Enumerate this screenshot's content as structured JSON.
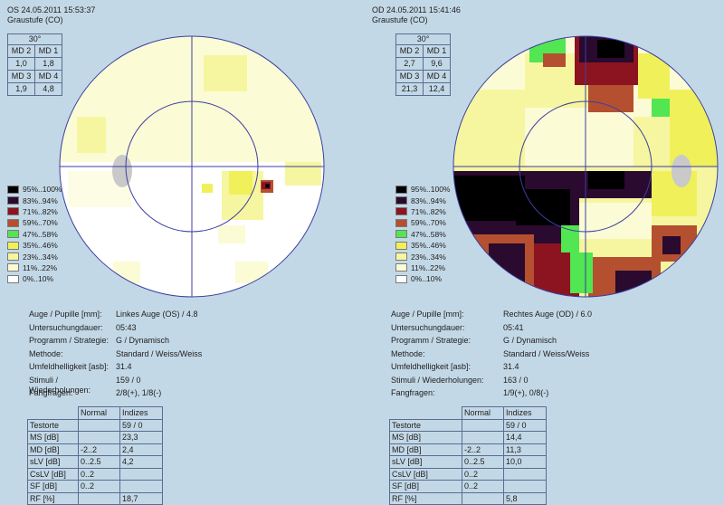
{
  "panels": [
    {
      "header": {
        "line1": "OS 24.05.2011 15:53:37",
        "line2": "Graustufe (CO)"
      },
      "md": {
        "title": "30°",
        "cells": [
          [
            "MD 2",
            "MD 1"
          ],
          [
            "1,0",
            "1,8"
          ],
          [
            "MD 3",
            "MD 4"
          ],
          [
            "1,9",
            "4,8"
          ]
        ]
      },
      "info": [
        {
          "k": "Auge / Pupille [mm]:",
          "v": "Linkes Auge (OS) / 4.8"
        },
        {
          "k": "Untersuchungdauer:",
          "v": "05:43"
        },
        {
          "k": "Programm / Strategie:",
          "v": "G / Dynamisch"
        },
        {
          "k": "Methode:",
          "v": "Standard / Weiss/Weiss"
        },
        {
          "k": "Umfeldhelligkeit [asb]:",
          "v": "31.4"
        },
        {
          "k": "Stimuli / Wiederholungen:",
          "v": "159 / 0"
        },
        {
          "k": "Fangfragen:",
          "v": "2/8(+), 1/8(-)"
        }
      ],
      "indices": {
        "headers": [
          "",
          "Normal",
          "Indizes"
        ],
        "rows": [
          [
            "Testorte",
            "",
            "59 / 0"
          ],
          [
            "MS [dB]",
            "",
            "23,3"
          ],
          [
            "MD [dB]",
            "-2..2",
            "2,4"
          ],
          [
            "sLV [dB]",
            "0..2.5",
            "4,2"
          ],
          [
            "CsLV [dB]",
            "0..2",
            ""
          ],
          [
            "SF [dB]",
            "0..2",
            ""
          ],
          [
            "RF [%]",
            "",
            "18,7"
          ]
        ]
      }
    },
    {
      "header": {
        "line1": "OD 24.05.2011 15:41:46",
        "line2": "Graustufe (CO)"
      },
      "md": {
        "title": "30°",
        "cells": [
          [
            "MD 2",
            "MD 1"
          ],
          [
            "2,7",
            "9,6"
          ],
          [
            "MD 3",
            "MD 4"
          ],
          [
            "21,3",
            "12,4"
          ]
        ]
      },
      "info": [
        {
          "k": "Auge / Pupille [mm]:",
          "v": "Rechtes Auge (OD) / 6.0"
        },
        {
          "k": "Untersuchungdauer:",
          "v": "05:41"
        },
        {
          "k": "Programm / Strategie:",
          "v": "G / Dynamisch"
        },
        {
          "k": "Methode:",
          "v": "Standard / Weiss/Weiss"
        },
        {
          "k": "Umfeldhelligkeit [asb]:",
          "v": "31.4"
        },
        {
          "k": "Stimuli / Wiederholungen:",
          "v": "163 / 0"
        },
        {
          "k": "Fangfragen:",
          "v": "1/9(+), 0/8(-)"
        }
      ],
      "indices": {
        "headers": [
          "",
          "Normal",
          "Indizes"
        ],
        "rows": [
          [
            "Testorte",
            "",
            "59 / 0"
          ],
          [
            "MS [dB]",
            "",
            "14,4"
          ],
          [
            "MD [dB]",
            "-2..2",
            "11,3"
          ],
          [
            "sLV [dB]",
            "0..2.5",
            "10,0"
          ],
          [
            "CsLV [dB]",
            "0..2",
            ""
          ],
          [
            "SF [dB]",
            "0..2",
            ""
          ],
          [
            "RF [%]",
            "",
            "5,8"
          ]
        ]
      }
    }
  ],
  "legend": [
    {
      "label": "95%..100%",
      "color": "#000000"
    },
    {
      "label": "83%..94%",
      "color": "#2a0a2e"
    },
    {
      "label": "71%..82%",
      "color": "#8c1420"
    },
    {
      "label": "59%..70%",
      "color": "#b45030"
    },
    {
      "label": "47%..58%",
      "color": "#52e652"
    },
    {
      "label": "35%..46%",
      "color": "#f0f05a"
    },
    {
      "label": "23%..34%",
      "color": "#f6f6a0"
    },
    {
      "label": "11%..22%",
      "color": "#fbfbd6"
    },
    {
      "label": "0%..10%",
      "color": "#ffffff"
    }
  ]
}
